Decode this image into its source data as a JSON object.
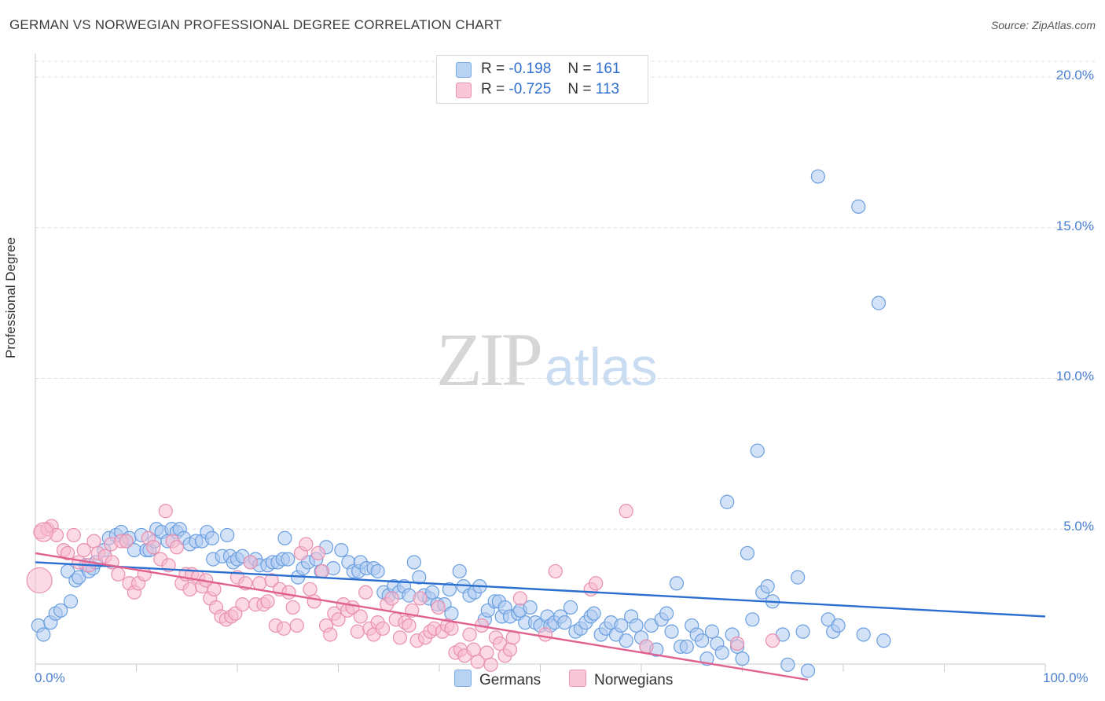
{
  "header": {
    "title": "GERMAN VS NORWEGIAN PROFESSIONAL DEGREE CORRELATION CHART",
    "source": "Source: ZipAtlas.com"
  },
  "watermark": {
    "zip": "ZIP",
    "atlas": "atlas"
  },
  "legend": {
    "rows": [
      {
        "r_label": "R =",
        "r_value": "-0.198",
        "n_label": "N =",
        "n_value": "161",
        "color": "#aecbf0"
      },
      {
        "r_label": "R =",
        "r_value": "-0.725",
        "n_label": "N =",
        "n_value": "113",
        "color": "#f7bcd0"
      }
    ]
  },
  "bottom_legend": {
    "germans": "Germans",
    "norwegians": "Norwegians"
  },
  "axis_text": {
    "ylabel": "Professional Degree",
    "x_min": "0.0%",
    "x_max": "100.0%",
    "y_ticks": [
      "20.0%",
      "15.0%",
      "10.0%",
      "5.0%"
    ]
  },
  "chart_data": {
    "type": "scatter",
    "title": "GERMAN VS NORWEGIAN PROFESSIONAL DEGREE CORRELATION CHART",
    "xlabel": "",
    "ylabel": "Professional Degree",
    "xlim": [
      0,
      100
    ],
    "ylim": [
      0,
      20
    ],
    "grid": true,
    "legend_position": "top-center",
    "series": [
      {
        "name": "Germans",
        "color": "#6a9fe0",
        "fill": "#aecbf0",
        "trend": {
          "x": [
            0,
            100
          ],
          "y": [
            3.9,
            2.1
          ],
          "color": "#2a6fd0"
        },
        "points": [
          [
            0.3,
            1.8
          ],
          [
            0.8,
            1.5
          ],
          [
            1.5,
            1.9
          ],
          [
            2,
            2.2
          ],
          [
            2.5,
            2.3
          ],
          [
            3.2,
            3.6
          ],
          [
            3.5,
            2.6
          ],
          [
            4,
            3.3
          ],
          [
            4.3,
            3.4
          ],
          [
            5,
            3.8
          ],
          [
            5.3,
            3.6
          ],
          [
            5.7,
            3.7
          ],
          [
            6,
            3.9
          ],
          [
            6.8,
            4.3
          ],
          [
            7.3,
            4.7
          ],
          [
            8,
            4.8
          ],
          [
            8.5,
            4.9
          ],
          [
            9,
            4.6
          ],
          [
            9.3,
            4.7
          ],
          [
            9.8,
            4.3
          ],
          [
            10.5,
            4.8
          ],
          [
            11,
            4.3
          ],
          [
            11.3,
            4.3
          ],
          [
            11.8,
            4.6
          ],
          [
            12,
            5
          ],
          [
            12.5,
            4.9
          ],
          [
            13.1,
            4.6
          ],
          [
            13.5,
            5
          ],
          [
            14,
            4.9
          ],
          [
            14.3,
            5
          ],
          [
            14.7,
            4.7
          ],
          [
            15.3,
            4.5
          ],
          [
            15.9,
            4.6
          ],
          [
            16.5,
            4.6
          ],
          [
            17,
            4.9
          ],
          [
            17.5,
            4.7
          ],
          [
            17.6,
            4
          ],
          [
            18.5,
            4.1
          ],
          [
            19,
            4.8
          ],
          [
            19.3,
            4.1
          ],
          [
            19.6,
            3.9
          ],
          [
            20,
            4
          ],
          [
            20.5,
            4.1
          ],
          [
            21.3,
            3.9
          ],
          [
            21.8,
            4
          ],
          [
            22.2,
            3.8
          ],
          [
            23,
            3.8
          ],
          [
            23.5,
            3.9
          ],
          [
            24,
            3.9
          ],
          [
            24.5,
            4
          ],
          [
            24.7,
            4.7
          ],
          [
            25,
            4
          ],
          [
            26,
            3.4
          ],
          [
            26.5,
            3.7
          ],
          [
            27,
            3.9
          ],
          [
            27.8,
            4
          ],
          [
            28.3,
            3.6
          ],
          [
            28.8,
            4.4
          ],
          [
            29.5,
            3.7
          ],
          [
            30.3,
            4.3
          ],
          [
            31,
            3.9
          ],
          [
            31.5,
            3.6
          ],
          [
            32,
            3.6
          ],
          [
            32.2,
            3.9
          ],
          [
            32.8,
            3.7
          ],
          [
            33.5,
            3.7
          ],
          [
            33.9,
            3.6
          ],
          [
            34.5,
            2.9
          ],
          [
            35,
            2.8
          ],
          [
            35.5,
            3.1
          ],
          [
            36,
            2.9
          ],
          [
            36.5,
            3.1
          ],
          [
            37,
            2.8
          ],
          [
            37.5,
            3.9
          ],
          [
            38,
            3.4
          ],
          [
            38.5,
            2.8
          ],
          [
            39,
            2.7
          ],
          [
            39.3,
            2.9
          ],
          [
            39.8,
            2.5
          ],
          [
            40.5,
            2.5
          ],
          [
            41,
            3
          ],
          [
            41.2,
            2.2
          ],
          [
            42,
            3.6
          ],
          [
            42.4,
            3.1
          ],
          [
            43,
            2.8
          ],
          [
            43.5,
            2.9
          ],
          [
            44,
            3.1
          ],
          [
            44.5,
            2
          ],
          [
            44.8,
            2.3
          ],
          [
            45.5,
            2.6
          ],
          [
            45.9,
            2.6
          ],
          [
            46.2,
            2.1
          ],
          [
            46.5,
            2.4
          ],
          [
            47,
            2.1
          ],
          [
            47.8,
            2.2
          ],
          [
            48,
            2.3
          ],
          [
            48.5,
            1.9
          ],
          [
            49,
            2.4
          ],
          [
            49.5,
            1.9
          ],
          [
            50,
            1.8
          ],
          [
            50.7,
            2.1
          ],
          [
            51,
            1.8
          ],
          [
            51.4,
            1.9
          ],
          [
            52,
            2.1
          ],
          [
            52.4,
            1.9
          ],
          [
            53,
            2.4
          ],
          [
            53.5,
            1.6
          ],
          [
            54,
            1.7
          ],
          [
            54.5,
            1.9
          ],
          [
            55,
            2.1
          ],
          [
            55.3,
            2.2
          ],
          [
            56,
            1.5
          ],
          [
            56.5,
            1.7
          ],
          [
            57,
            1.9
          ],
          [
            57.5,
            1.5
          ],
          [
            58,
            1.8
          ],
          [
            58.5,
            1.3
          ],
          [
            59,
            2.1
          ],
          [
            59.5,
            1.8
          ],
          [
            60,
            1.4
          ],
          [
            60.5,
            1.1
          ],
          [
            61,
            1.8
          ],
          [
            61.5,
            1.0
          ],
          [
            62,
            2.0
          ],
          [
            62.5,
            2.2
          ],
          [
            63,
            1.6
          ],
          [
            63.5,
            3.2
          ],
          [
            63.9,
            1.1
          ],
          [
            64.5,
            1.1
          ],
          [
            65,
            1.8
          ],
          [
            65.5,
            1.5
          ],
          [
            66,
            1.3
          ],
          [
            66.5,
            0.7
          ],
          [
            67,
            1.6
          ],
          [
            67.5,
            1.2
          ],
          [
            68,
            0.9
          ],
          [
            68.5,
            5.9
          ],
          [
            69,
            1.5
          ],
          [
            69.5,
            1.1
          ],
          [
            70,
            0.7
          ],
          [
            70.5,
            4.2
          ],
          [
            71,
            2.0
          ],
          [
            71.5,
            7.6
          ],
          [
            72,
            2.9
          ],
          [
            72.5,
            3.1
          ],
          [
            73,
            2.6
          ],
          [
            74,
            1.5
          ],
          [
            74.5,
            0.5
          ],
          [
            75.5,
            3.4
          ],
          [
            76,
            1.6
          ],
          [
            76.5,
            0.3
          ],
          [
            77.5,
            16.7
          ],
          [
            78.5,
            2
          ],
          [
            79,
            1.6
          ],
          [
            79.5,
            1.8
          ],
          [
            81.5,
            15.7
          ],
          [
            82,
            1.5
          ],
          [
            83.5,
            12.5
          ],
          [
            84,
            1.3
          ]
        ]
      },
      {
        "name": "Norwegians",
        "color": "#e98fb0",
        "fill": "#f7bcd0",
        "trend": {
          "x": [
            0,
            76.5
          ],
          "y": [
            4.2,
            0
          ],
          "color": "#e0608f"
        },
        "points": [
          [
            0.5,
            4.9
          ],
          [
            1.2,
            5
          ],
          [
            1.6,
            5.1
          ],
          [
            2.1,
            4.8
          ],
          [
            2.8,
            4.3
          ],
          [
            3.2,
            4.2
          ],
          [
            3.8,
            4.8
          ],
          [
            4.3,
            3.9
          ],
          [
            4.8,
            4.3
          ],
          [
            5.3,
            3.8
          ],
          [
            5.8,
            4.6
          ],
          [
            6.2,
            4.2
          ],
          [
            6.9,
            4.1
          ],
          [
            7.5,
            4.5
          ],
          [
            7.6,
            3.9
          ],
          [
            8.2,
            3.5
          ],
          [
            8.5,
            4.6
          ],
          [
            9,
            4.6
          ],
          [
            9.3,
            3.2
          ],
          [
            9.8,
            2.9
          ],
          [
            10.2,
            3.2
          ],
          [
            10.8,
            3.5
          ],
          [
            11.2,
            4.7
          ],
          [
            11.7,
            4.4
          ],
          [
            12.4,
            4
          ],
          [
            12.9,
            5.6
          ],
          [
            13.2,
            3.8
          ],
          [
            13.6,
            4.6
          ],
          [
            14,
            4.4
          ],
          [
            14.5,
            3.2
          ],
          [
            14.9,
            3.5
          ],
          [
            15.3,
            3
          ],
          [
            15.5,
            3.5
          ],
          [
            16.1,
            3.4
          ],
          [
            16.5,
            3.1
          ],
          [
            16.9,
            3.3
          ],
          [
            17.3,
            2.7
          ],
          [
            17.7,
            3
          ],
          [
            17.9,
            2.4
          ],
          [
            18.4,
            2.1
          ],
          [
            18.9,
            2
          ],
          [
            19.4,
            2.1
          ],
          [
            19.8,
            2.2
          ],
          [
            20,
            3.4
          ],
          [
            20.5,
            2.5
          ],
          [
            20.8,
            3.2
          ],
          [
            21.3,
            3.9
          ],
          [
            21.8,
            2.5
          ],
          [
            22.2,
            3.2
          ],
          [
            22.6,
            2.5
          ],
          [
            23,
            2.6
          ],
          [
            23.4,
            3.3
          ],
          [
            23.8,
            1.8
          ],
          [
            24.2,
            3
          ],
          [
            24.6,
            1.7
          ],
          [
            25.1,
            2.9
          ],
          [
            25.5,
            2.4
          ],
          [
            25.9,
            1.8
          ],
          [
            26.3,
            4.2
          ],
          [
            26.8,
            4.5
          ],
          [
            27.2,
            3
          ],
          [
            27.6,
            2.6
          ],
          [
            28,
            4.2
          ],
          [
            28.4,
            3.6
          ],
          [
            28.8,
            1.8
          ],
          [
            29.2,
            1.5
          ],
          [
            29.6,
            2.2
          ],
          [
            30,
            2
          ],
          [
            30.5,
            2.5
          ],
          [
            30.9,
            2.3
          ],
          [
            31.4,
            2.4
          ],
          [
            31.9,
            1.6
          ],
          [
            32.2,
            2.1
          ],
          [
            32.7,
            2.9
          ],
          [
            33.1,
            1.7
          ],
          [
            33.5,
            1.5
          ],
          [
            33.9,
            1.9
          ],
          [
            34.4,
            1.7
          ],
          [
            34.8,
            2.5
          ],
          [
            35.3,
            2.7
          ],
          [
            35.7,
            2
          ],
          [
            36.1,
            1.4
          ],
          [
            36.6,
            1.9
          ],
          [
            37,
            1.8
          ],
          [
            37.3,
            2.3
          ],
          [
            37.8,
            1.3
          ],
          [
            38.1,
            2.7
          ],
          [
            38.6,
            1.4
          ],
          [
            39.1,
            1.6
          ],
          [
            39.5,
            1.7
          ],
          [
            39.9,
            2.4
          ],
          [
            40.3,
            1.6
          ],
          [
            40.8,
            1.8
          ],
          [
            41.2,
            1.7
          ],
          [
            41.6,
            0.9
          ],
          [
            42.1,
            1.0
          ],
          [
            42.5,
            0.8
          ],
          [
            43,
            1.5
          ],
          [
            43.4,
            1
          ],
          [
            43.8,
            0.6
          ],
          [
            44.2,
            1.8
          ],
          [
            44.7,
            0.9
          ],
          [
            45.1,
            0.5
          ],
          [
            45.6,
            1.4
          ],
          [
            46.0,
            1.2
          ],
          [
            46.5,
            0.8
          ],
          [
            47,
            1.0
          ],
          [
            47.3,
            1.4
          ],
          [
            48.0,
            2.7
          ],
          [
            50.5,
            1.5
          ],
          [
            51.5,
            3.6
          ],
          [
            55.0,
            3.0
          ],
          [
            55.5,
            3.2
          ],
          [
            58.5,
            5.6
          ],
          [
            60.5,
            1.1
          ],
          [
            69.5,
            1.2
          ],
          [
            73.0,
            1.3
          ]
        ]
      }
    ]
  }
}
